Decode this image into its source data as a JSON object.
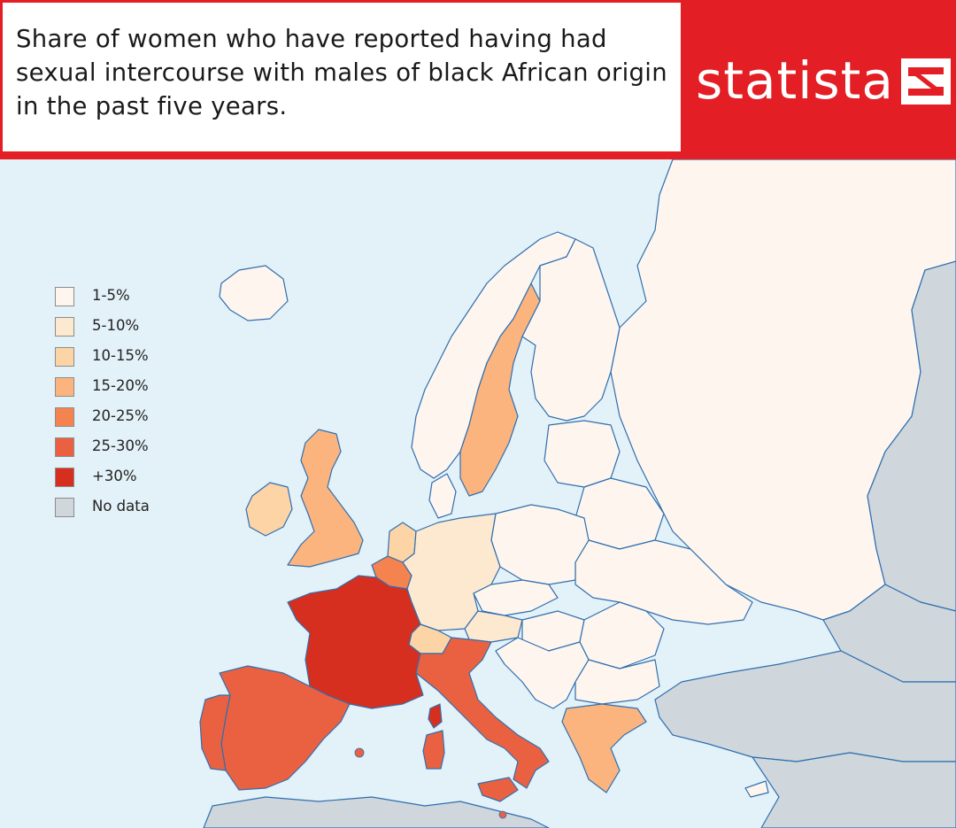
{
  "header": {
    "title": "Share of women who have reported having had sexual intercourse with males of black African origin in the past five years.",
    "brand": "statista"
  },
  "colors": {
    "sea": "#e3f1f8",
    "border": "#2f6fb0",
    "brand_red": "#e31e24",
    "no_data": "#cfd6dc"
  },
  "legend": {
    "items": [
      {
        "label": "1-5%",
        "color": "#fef6ee"
      },
      {
        "label": "5-10%",
        "color": "#fde8d0"
      },
      {
        "label": "10-15%",
        "color": "#fdd4a6"
      },
      {
        "label": "15-20%",
        "color": "#fcb47f"
      },
      {
        "label": "20-25%",
        "color": "#f5834f"
      },
      {
        "label": "25-30%",
        "color": "#ea6142"
      },
      {
        "label": "+30%",
        "color": "#d62f1f"
      },
      {
        "label": "No data",
        "color": "#cfd6dc"
      }
    ]
  },
  "regions": [
    {
      "name": "France",
      "category": "+30%"
    },
    {
      "name": "Spain",
      "category": "25-30%"
    },
    {
      "name": "Portugal",
      "category": "25-30%"
    },
    {
      "name": "Italy",
      "category": "25-30%"
    },
    {
      "name": "Belgium",
      "category": "20-25%"
    },
    {
      "name": "United Kingdom",
      "category": "15-20%"
    },
    {
      "name": "Sweden",
      "category": "15-20%"
    },
    {
      "name": "Greece",
      "category": "15-20%"
    },
    {
      "name": "Netherlands",
      "category": "10-15%"
    },
    {
      "name": "Ireland",
      "category": "10-15%"
    },
    {
      "name": "Switzerland",
      "category": "10-15%"
    },
    {
      "name": "Germany",
      "category": "5-10%"
    },
    {
      "name": "Austria",
      "category": "5-10%"
    },
    {
      "name": "Norway",
      "category": "1-5%"
    },
    {
      "name": "Finland",
      "category": "1-5%"
    },
    {
      "name": "Poland",
      "category": "1-5%"
    },
    {
      "name": "Russia",
      "category": "1-5%"
    },
    {
      "name": "Turkey",
      "category": "No data"
    }
  ]
}
